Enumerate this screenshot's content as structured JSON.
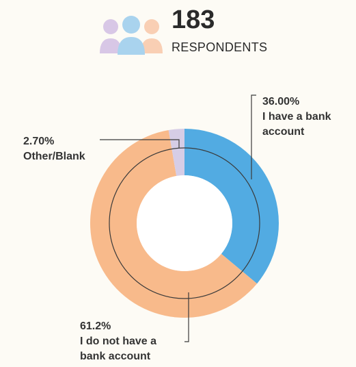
{
  "header": {
    "count": "183",
    "count_label": "RESPONDENTS",
    "icon": "people-group-icon"
  },
  "colors": {
    "background": "#fdfbf5",
    "bank": "#52abe2",
    "no_bank": "#f8ba8b",
    "other": "#d6cde6",
    "icon_person_left": "#d8c7e6",
    "icon_person_center": "#a9d3ee",
    "icon_person_right": "#f9cfb4",
    "leader": "#3a3a3a"
  },
  "chart_data": {
    "type": "pie",
    "style": "donut",
    "slices": [
      {
        "label": "I have a bank account",
        "value": 36.0,
        "display": "36.00%",
        "color": "#52abe2"
      },
      {
        "label": "I do not have a bank account",
        "value": 61.2,
        "display": "61.2%",
        "color": "#f8ba8b"
      },
      {
        "label": "Other/Blank",
        "value": 2.7,
        "display": "2.70%",
        "color": "#d6cde6"
      }
    ],
    "labels": {
      "bank": {
        "pct": "36.00%",
        "line1": "I have a bank",
        "line2": "account"
      },
      "other": {
        "pct": "2.70%",
        "line1": "Other/Blank"
      },
      "no_bank": {
        "pct": "61.2%",
        "line1": "I do not have a",
        "line2": "bank account"
      }
    }
  }
}
